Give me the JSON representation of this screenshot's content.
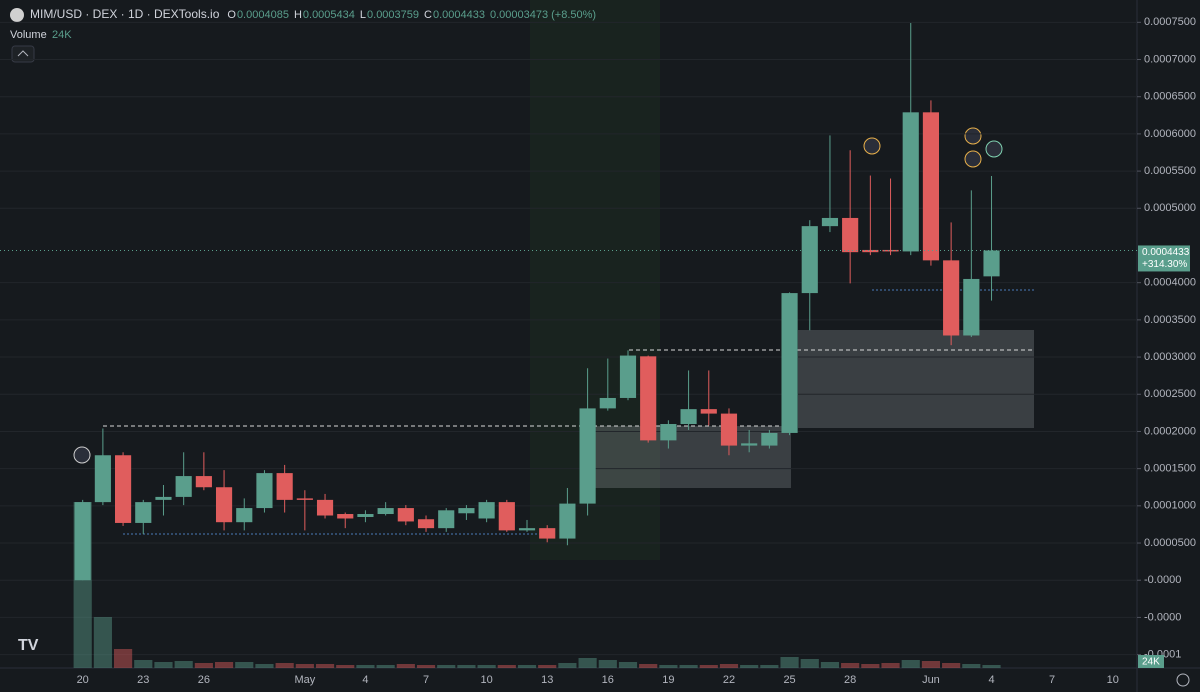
{
  "chart_data": {
    "type": "candlestick",
    "title": "MIM/USD · DEX · 1D · DEXTools.io",
    "ohlc_legend": [
      {
        "key": "O",
        "value": "0.0004085"
      },
      {
        "key": "H",
        "value": "0.0005434"
      },
      {
        "key": "L",
        "value": "0.0003759"
      },
      {
        "key": "C",
        "value": "0.0004433"
      }
    ],
    "change": "0.00003473 (+8.50%)",
    "price_label": {
      "value": "0.0004433",
      "change": "+314.30%"
    },
    "categories": [
      null,
      null,
      null,
      "20",
      null,
      null,
      "23",
      null,
      null,
      "26",
      null,
      null,
      null,
      null,
      "May",
      null,
      null,
      "4",
      null,
      null,
      "7",
      null,
      null,
      "10",
      null,
      null,
      "13",
      null,
      null,
      "16",
      null,
      null,
      "19",
      null,
      null,
      "22",
      null,
      null,
      "25",
      null,
      null,
      "28",
      null,
      null,
      null,
      "Jun",
      null,
      null,
      "4",
      null,
      null,
      "7",
      null,
      null,
      "10",
      null
    ],
    "series": [
      {
        "name": "MIM/USD",
        "up_color": "#5a9e8c",
        "down_color": "#e05d5d",
        "open": [
          null,
          null,
          null,
          0,
          0.000105,
          0.000168,
          7.7e-05,
          0.000108,
          0.000112,
          0.00014,
          0.000125,
          7.8e-05,
          9.7e-05,
          0.000144,
          0.00011,
          0.000108,
          8.9e-05,
          8.5e-05,
          8.9e-05,
          9.7e-05,
          8.2e-05,
          7e-05,
          9e-05,
          8.3e-05,
          0.000105,
          6.7e-05,
          7e-05,
          5.6e-05,
          0.000103,
          0.000231,
          0.000245,
          0.000301,
          0.000188,
          0.00021,
          0.00023,
          0.000224,
          0.000181,
          0.000181,
          0.000198,
          0.000386,
          0.000476,
          0.000487,
          0.000444,
          0.000444,
          0.000442,
          0.000629,
          0.00043,
          0.000329,
          0.0004085,
          null,
          null,
          null,
          null,
          null,
          null,
          null
        ],
        "high": [
          null,
          null,
          null,
          0.000108,
          0.000204,
          0.000172,
          0.000108,
          0.000128,
          0.000172,
          0.000172,
          0.000148,
          0.00011,
          0.000148,
          0.000155,
          0.000121,
          0.000116,
          9.1e-05,
          9.4e-05,
          0.000105,
          0.000101,
          8.7e-05,
          9.7e-05,
          0.000101,
          0.000108,
          0.000108,
          8.1e-05,
          7.4e-05,
          0.000124,
          0.000285,
          0.000298,
          0.000309,
          0.000302,
          0.000215,
          0.000282,
          0.000282,
          0.000231,
          0.000202,
          0.000202,
          0.000387,
          0.000484,
          0.000598,
          0.000578,
          0.000544,
          0.00054,
          0.000749,
          0.000645,
          0.000481,
          0.000524,
          0.0005434,
          null,
          null,
          null,
          null,
          null,
          null,
          null
        ],
        "low": [
          null,
          null,
          null,
          0,
          0.000101,
          7.3e-05,
          6.2e-05,
          8.7e-05,
          0.000101,
          0.000121,
          6.7e-05,
          6.7e-05,
          9.1e-05,
          9.1e-05,
          6.7e-05,
          8.3e-05,
          7e-05,
          7.8e-05,
          8.7e-05,
          7.4e-05,
          6.5e-05,
          6.5e-05,
          8.1e-05,
          7.8e-05,
          6.5e-05,
          6.5e-05,
          5.1e-05,
          4.7e-05,
          8.7e-05,
          0.000228,
          0.000242,
          0.000185,
          0.000177,
          0.000202,
          0.000208,
          0.000168,
          0.000172,
          0.000177,
          0.000195,
          0.000336,
          0.000468,
          0.000399,
          0.000437,
          0.000437,
          0.000437,
          0.000423,
          0.000316,
          0.000327,
          0.0003759,
          null,
          null,
          null,
          null,
          null,
          null,
          null
        ],
        "close": [
          null,
          null,
          null,
          0.000105,
          0.000168,
          7.7e-05,
          0.000105,
          0.000112,
          0.00014,
          0.000125,
          7.8e-05,
          9.7e-05,
          0.000144,
          0.000108,
          0.000108,
          8.7e-05,
          8.3e-05,
          8.9e-05,
          9.7e-05,
          7.9e-05,
          7e-05,
          9.4e-05,
          9.7e-05,
          0.000105,
          6.7e-05,
          7e-05,
          5.6e-05,
          0.000103,
          0.000231,
          0.000245,
          0.000302,
          0.000188,
          0.00021,
          0.00023,
          0.000224,
          0.000181,
          0.000184,
          0.000198,
          0.000386,
          0.000476,
          0.000487,
          0.000441,
          0.000441,
          0.000442,
          0.000629,
          0.00043,
          0.000329,
          0.000405,
          0.0004433,
          null,
          null,
          null,
          null,
          null,
          null,
          null
        ]
      }
    ],
    "volume": {
      "name": "Volume",
      "label": "24K",
      "values": [
        null,
        null,
        null,
        1328000,
        408000,
        152000,
        64000,
        48000,
        56000,
        40000,
        48000,
        48000,
        32000,
        40000,
        32000,
        32000,
        24000,
        24000,
        24000,
        32000,
        24000,
        24000,
        24000,
        24000,
        24000,
        24000,
        24000,
        40000,
        80000,
        64000,
        48000,
        32000,
        24000,
        24000,
        24000,
        32000,
        24000,
        24000,
        88000,
        72000,
        48000,
        40000,
        32000,
        40000,
        64000,
        56000,
        40000,
        32000,
        24000,
        null,
        null,
        null,
        null,
        null,
        null,
        null
      ]
    },
    "ylim": [
      -0.000118,
      0.00078
    ],
    "yticks": [
      {
        "value": 0.00075,
        "label": "0.0007500"
      },
      {
        "value": 0.0007,
        "label": "0.0007000"
      },
      {
        "value": 0.00065,
        "label": "0.0006500"
      },
      {
        "value": 0.0006,
        "label": "0.0006000"
      },
      {
        "value": 0.00055,
        "label": "0.0005500"
      },
      {
        "value": 0.0005,
        "label": "0.0005000"
      },
      {
        "value": 0.0004,
        "label": "0.0004000"
      },
      {
        "value": 0.00035,
        "label": "0.0003500"
      },
      {
        "value": 0.0003,
        "label": "0.0003000"
      },
      {
        "value": 0.00025,
        "label": "0.0002500"
      },
      {
        "value": 0.0002,
        "label": "0.0002000"
      },
      {
        "value": 0.00015,
        "label": "0.0001500"
      },
      {
        "value": 0.0001,
        "label": "0.0001000"
      },
      {
        "value": 5e-05,
        "label": "0.0000500"
      },
      {
        "value": 0,
        "label": "-0.0000"
      },
      {
        "value": -5e-05,
        "label": "-0.0000"
      },
      {
        "value": -0.0001,
        "label": "-0.0001"
      }
    ],
    "grid": true
  }
}
